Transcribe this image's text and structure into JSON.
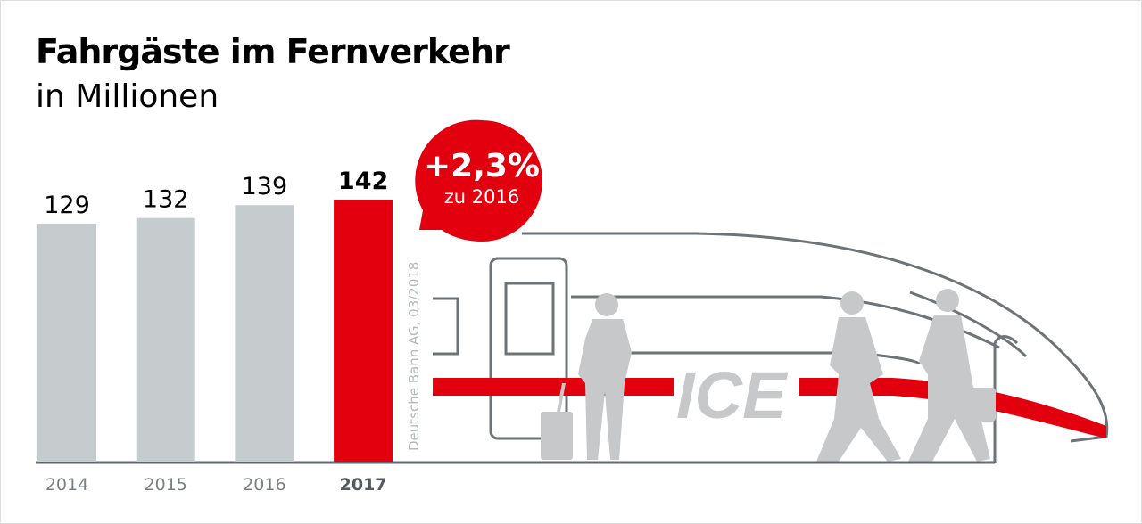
{
  "chart_data": {
    "type": "bar",
    "title": "Fahrgäste im Fernverkehr",
    "subtitle": "in Millionen",
    "categories": [
      "2014",
      "2015",
      "2016",
      "2017"
    ],
    "values": [
      129,
      132,
      139,
      142
    ],
    "value_labels": [
      "129",
      "132",
      "139",
      "142"
    ],
    "highlight_index": 3,
    "ylim": [
      0,
      142
    ],
    "xlabel": "",
    "ylabel": "",
    "grid": false,
    "annotation": {
      "main": "+2,3%",
      "sub": "zu 2016"
    },
    "source": "Deutsche Bahn AG, 03/2018",
    "illustration_label": "ICE",
    "colors": {
      "bar": "#c6cbcd",
      "highlight": "#e2000f",
      "axis": "#646973",
      "train": "#6e7378",
      "figure": "#c6c8c9"
    }
  }
}
